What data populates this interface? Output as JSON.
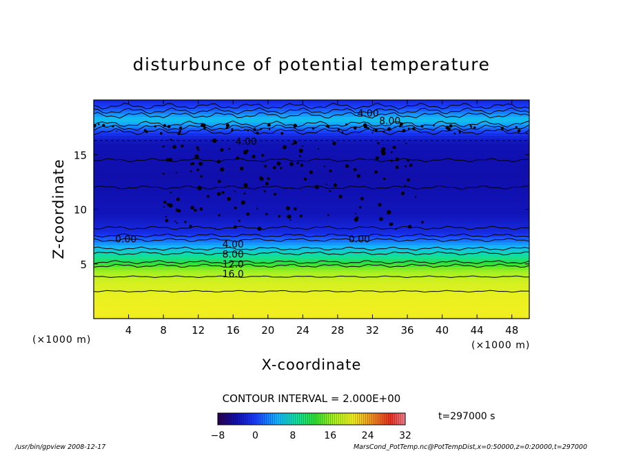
{
  "chart_data": {
    "type": "heatmap",
    "title": "disturbunce of potential temperature",
    "xlabel": "X-coordinate",
    "ylabel": "Z-coordinate",
    "x_unit_left": "(×1000 m)",
    "x_unit_right": "(×1000 m)",
    "x_range": [
      0,
      50
    ],
    "y_range": [
      0,
      20
    ],
    "x_ticks": [
      4,
      8,
      12,
      16,
      20,
      24,
      28,
      32,
      36,
      40,
      44,
      48
    ],
    "y_ticks": [
      5,
      10,
      15
    ],
    "grid": false,
    "contour_interval_text": "CONTOUR INTERVAL = 2.000E+00",
    "time_text": "t=297000 s",
    "colorbar": {
      "range": [
        -8,
        32
      ],
      "tick_labels": [
        "−8",
        "0",
        "8",
        "16",
        "24",
        "32"
      ],
      "tick_values": [
        -8,
        0,
        8,
        16,
        24,
        32
      ]
    },
    "layer_profile": [
      {
        "z": 0.0,
        "value": 21
      },
      {
        "z": 2.0,
        "value": 20.5
      },
      {
        "z": 3.5,
        "value": 19
      },
      {
        "z": 4.5,
        "value": 16
      },
      {
        "z": 5.0,
        "value": 13
      },
      {
        "z": 5.5,
        "value": 10
      },
      {
        "z": 6.2,
        "value": 7
      },
      {
        "z": 6.8,
        "value": 4
      },
      {
        "z": 7.4,
        "value": 1
      },
      {
        "z": 7.9,
        "value": -1.5
      },
      {
        "z": 9.5,
        "value": -3.5
      },
      {
        "z": 13.0,
        "value": -4.2
      },
      {
        "z": 16.0,
        "value": -3.8
      },
      {
        "z": 16.7,
        "value": -2
      },
      {
        "z": 17.3,
        "value": 1
      },
      {
        "z": 17.7,
        "value": 3.5
      },
      {
        "z": 18.2,
        "value": 6
      },
      {
        "z": 18.8,
        "value": 3
      },
      {
        "z": 19.3,
        "value": 0.5
      },
      {
        "z": 20.0,
        "value": -2
      }
    ],
    "contour_labels": [
      {
        "text": "4.00",
        "x": 31.5,
        "z": 18.8
      },
      {
        "text": "8.00",
        "x": 34.0,
        "z": 18.1
      },
      {
        "text": "4.00",
        "x": 17.5,
        "z": 16.2
      },
      {
        "text": "0.00",
        "x": 3.7,
        "z": 7.3
      },
      {
        "text": "0.00",
        "x": 30.5,
        "z": 7.3
      },
      {
        "text": "4.00",
        "x": 16.0,
        "z": 6.8
      },
      {
        "text": "8.00",
        "x": 16.0,
        "z": 5.9
      },
      {
        "text": "12.0",
        "x": 16.0,
        "z": 5.0
      },
      {
        "text": "16.0",
        "x": 16.0,
        "z": 4.1
      }
    ],
    "dashed_level_z": 16.3
  },
  "footer": {
    "left": "/usr/bin/gpview   2008-12-17",
    "right": "MarsCond_PotTemp.nc@PotTempDist,x=0:50000,z=0:20000,t=297000"
  }
}
